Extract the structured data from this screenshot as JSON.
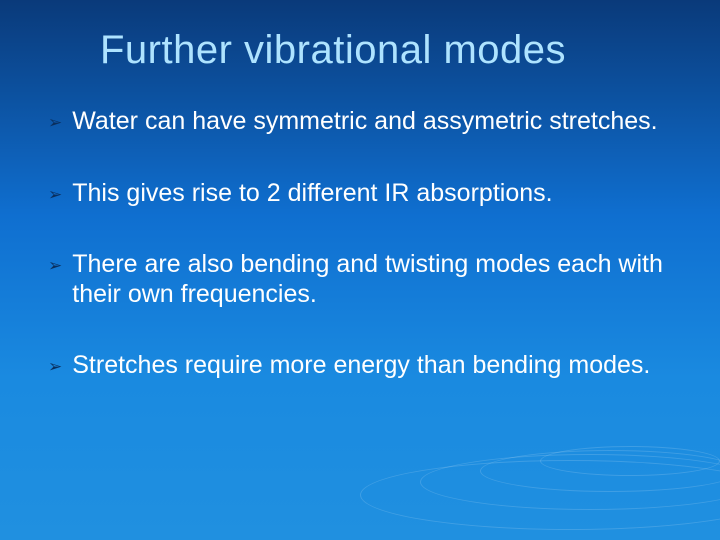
{
  "slide": {
    "title": "Further vibrational modes",
    "title_color": "#aee3ff",
    "title_fontsize": 40,
    "background_gradient": [
      "#0a3a7a",
      "#0f6fd0",
      "#1a8ae0",
      "#2090e0"
    ],
    "bullet_marker": "➢",
    "bullet_marker_color": "#0a2e5c",
    "bullet_fontsize": 25,
    "bullet_text_color": "#ffffff",
    "bullets": [
      "Water can have symmetric and assymetric stretches.",
      "This gives rise to 2 different IR absorptions.",
      "There are also bending and twisting modes each with their own frequencies.",
      "Stretches require more energy than bending modes."
    ]
  }
}
